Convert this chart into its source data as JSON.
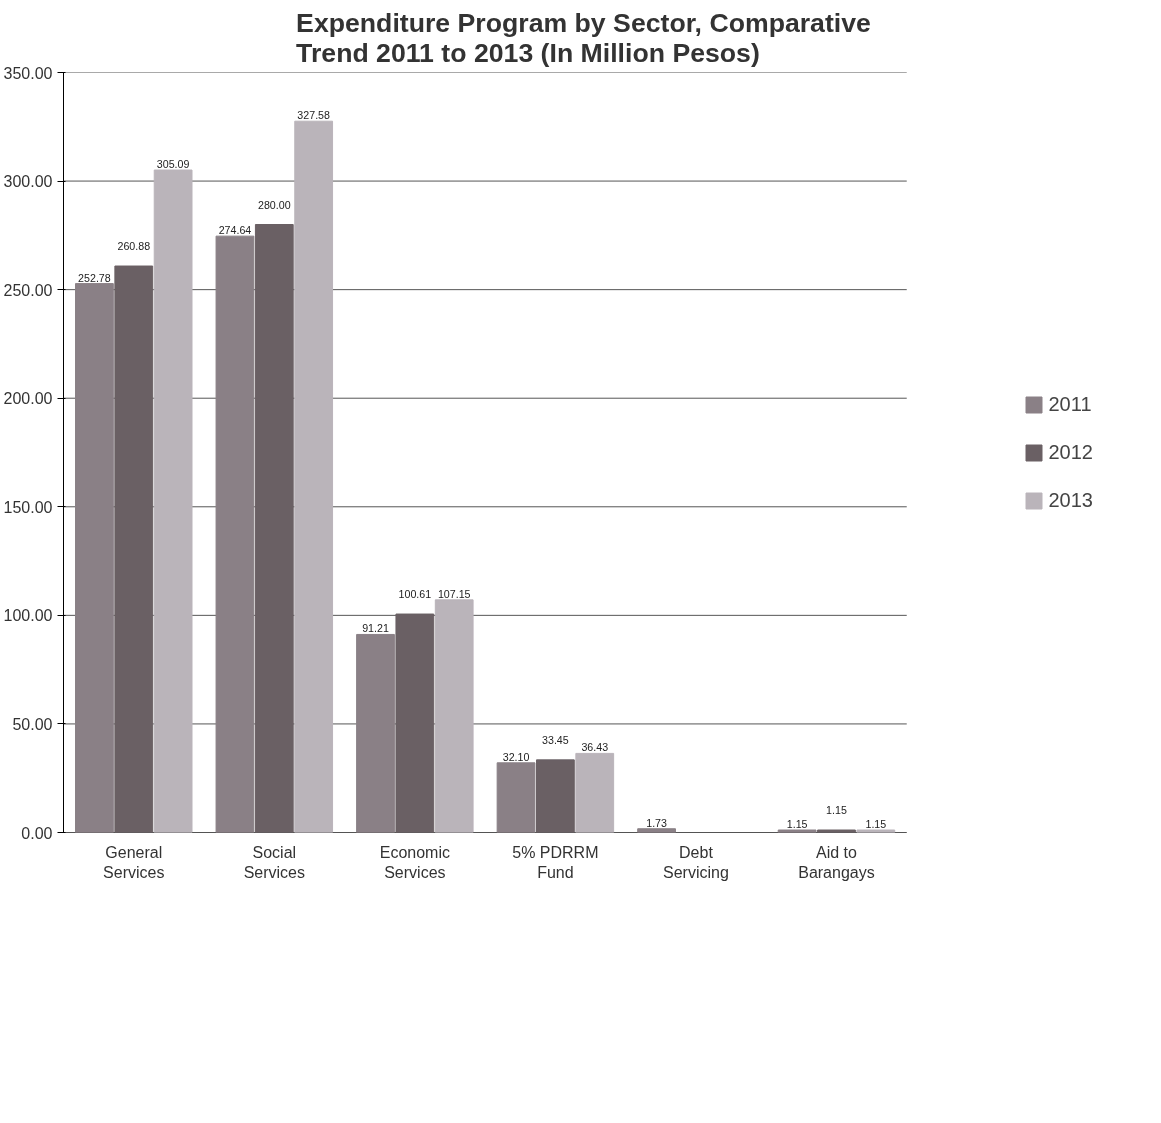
{
  "chart_data": {
    "type": "bar",
    "title": "Expenditure Program by Sector, Comparative Trend 2011 to 2013 (In Million Pesos)",
    "categories": [
      "General Services",
      "Social Services",
      "Economic Services",
      "5% PDRRM Fund",
      "Debt Servicing",
      "Aid to Barangays"
    ],
    "series": [
      {
        "name": "2011",
        "color": "#8a8086",
        "values": [
          252.78,
          274.64,
          91.21,
          32.1,
          1.73,
          1.15
        ],
        "value_labels": [
          "252.78",
          "274.64",
          "91.21",
          "32.10",
          "1.73",
          "1.15"
        ]
      },
      {
        "name": "2012",
        "color": "#6a6064",
        "values": [
          260.88,
          280.0,
          100.61,
          33.45,
          null,
          1.15
        ],
        "value_labels": [
          "260.88",
          "280.00",
          "100.61",
          "33.45",
          null,
          "1.15"
        ]
      },
      {
        "name": "2013",
        "color": "#bab4ba",
        "values": [
          305.09,
          327.58,
          107.15,
          36.43,
          null,
          1.15
        ],
        "value_labels": [
          "305.09",
          "327.58",
          "107.15",
          "36.43",
          null,
          "1.15"
        ]
      }
    ],
    "ylim": [
      0,
      350
    ],
    "yticks": [
      {
        "value": 0,
        "label": "0.00"
      },
      {
        "value": 50,
        "label": "50.00"
      },
      {
        "value": 100,
        "label": "100.00"
      },
      {
        "value": 150,
        "label": "150.00"
      },
      {
        "value": 200,
        "label": "200.00"
      },
      {
        "value": 250,
        "label": "250.00"
      },
      {
        "value": 300,
        "label": "300.00"
      },
      {
        "value": 350,
        "label": "350.00"
      }
    ],
    "grid": "y",
    "legend": "right"
  }
}
